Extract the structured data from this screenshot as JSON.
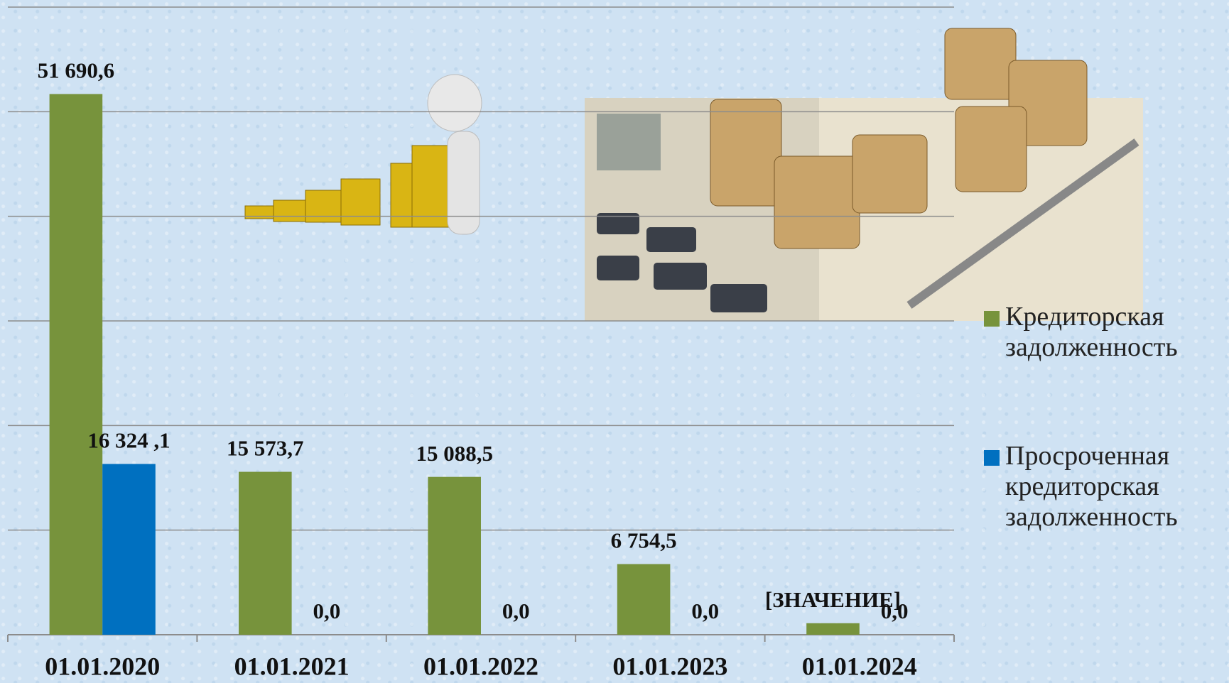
{
  "chart_data": {
    "type": "bar",
    "categories": [
      "01.01.2020",
      "01.01.2021",
      "01.01.2022",
      "01.01.2023",
      "01.01.2024"
    ],
    "series": [
      {
        "name": "Кредиторская задолженность",
        "color": "#77933c",
        "values": [
          51690.6,
          15573.7,
          15088.5,
          6754.5,
          1100
        ],
        "value_labels": [
          "51 690,6",
          "15 573,7",
          "15 088,5",
          "6 754,5",
          "[ЗНАЧЕНИЕ]"
        ]
      },
      {
        "name": "Просроченная кредиторская задолженность",
        "color": "#0070c0",
        "values": [
          16324.1,
          0,
          0,
          0,
          0
        ],
        "value_labels": [
          "16 324 ,1",
          "0,0",
          "0,0",
          "0,0",
          "0,0"
        ]
      }
    ],
    "ylim": [
      0,
      60000
    ],
    "yticks": [
      0,
      10000,
      20000,
      30000,
      40000,
      50000,
      60000
    ],
    "grid": true,
    "legend": "right"
  }
}
